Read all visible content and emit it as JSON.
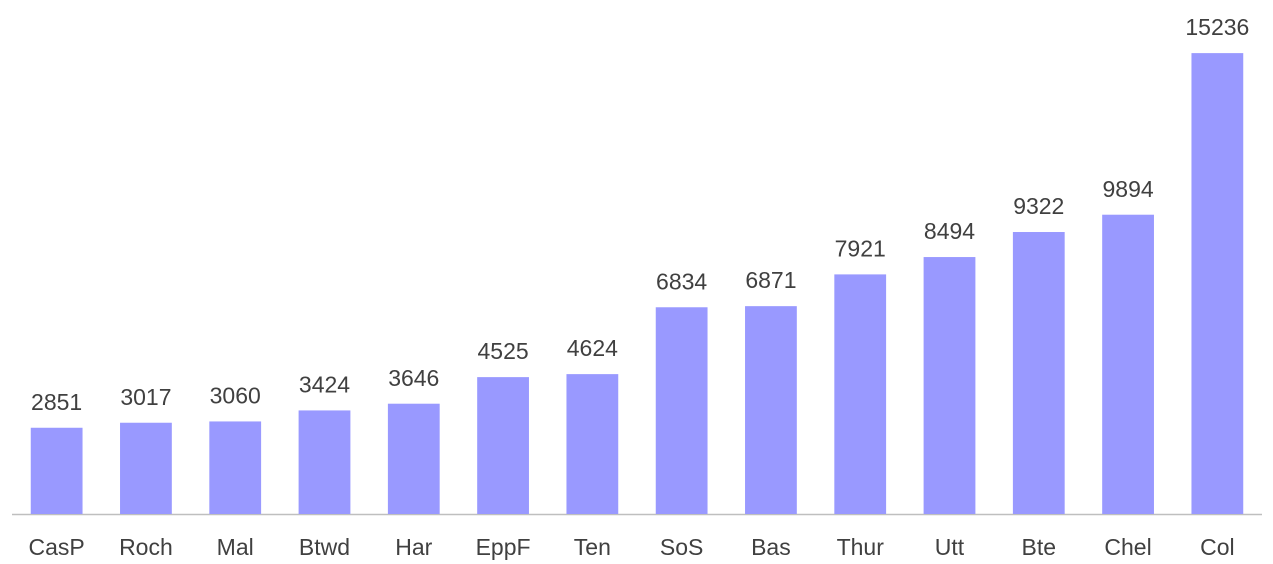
{
  "chart_data": {
    "type": "bar",
    "categories": [
      "CasP",
      "Roch",
      "Mal",
      "Btwd",
      "Har",
      "EppF",
      "Ten",
      "SoS",
      "Bas",
      "Thur",
      "Utt",
      "Bte",
      "Chel",
      "Col"
    ],
    "values": [
      2851,
      3017,
      3060,
      3424,
      3646,
      4525,
      4624,
      6834,
      6871,
      7921,
      8494,
      9322,
      9894,
      15236
    ],
    "color": "#9999ff",
    "ylim": [
      0,
      16000
    ]
  }
}
